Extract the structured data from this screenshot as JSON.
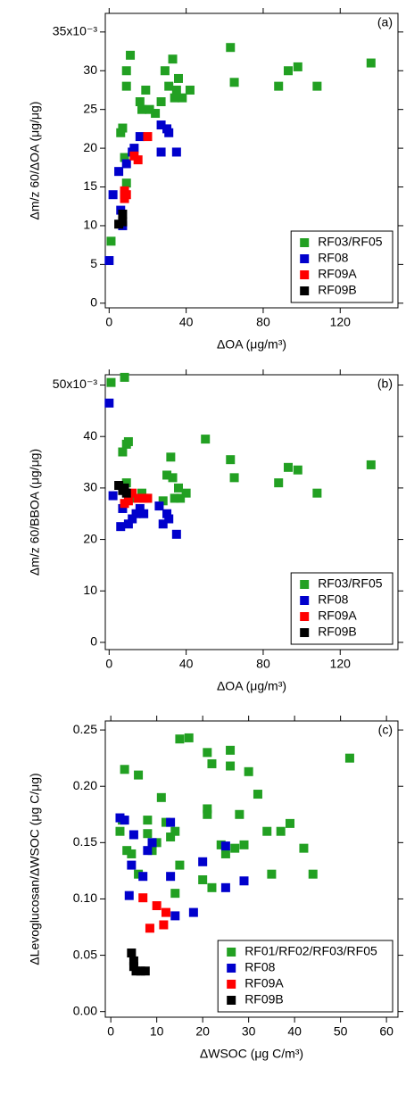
{
  "chart_data": [
    {
      "type": "scatter",
      "panel_label": "(a)",
      "xlabel": "ΔOA (μg/m³)",
      "ylabel": "Δm/z 60/ΔOA (μg/μg)",
      "xlim": [
        -2,
        150
      ],
      "ylim": [
        -0.0006,
        0.0374
      ],
      "xticks": [
        0,
        40,
        80,
        120
      ],
      "yticks": [
        {
          "value": 0,
          "label": "0"
        },
        {
          "value": 0.005,
          "label": "5"
        },
        {
          "value": 0.01,
          "label": "10"
        },
        {
          "value": 0.015,
          "label": "15"
        },
        {
          "value": 0.02,
          "label": "20"
        },
        {
          "value": 0.025,
          "label": "25"
        },
        {
          "value": 0.03,
          "label": "30"
        },
        {
          "value": 0.035,
          "label": "35x10⁻³"
        }
      ],
      "legend": "lower right",
      "series": [
        {
          "name": "RF03/RF05",
          "color": "#22a022",
          "x": [
            1,
            6,
            7,
            9,
            9,
            11,
            8,
            9,
            16,
            17,
            19,
            21,
            24,
            27,
            29,
            31,
            33,
            34,
            35,
            36,
            38,
            42,
            63,
            65,
            88,
            93,
            98,
            108,
            136
          ],
          "values": [
            0.008,
            0.022,
            0.0226,
            0.03,
            0.028,
            0.032,
            0.0188,
            0.0155,
            0.026,
            0.025,
            0.0275,
            0.025,
            0.0245,
            0.026,
            0.03,
            0.028,
            0.0315,
            0.0265,
            0.0275,
            0.029,
            0.0265,
            0.0275,
            0.033,
            0.0285,
            0.028,
            0.03,
            0.0305,
            0.028,
            0.031
          ]
        },
        {
          "name": "RF08",
          "color": "#0000cc",
          "x": [
            0,
            2,
            5,
            6,
            8,
            12,
            13,
            16,
            27,
            27,
            30,
            31,
            35,
            7,
            9
          ],
          "values": [
            0.0055,
            0.014,
            0.017,
            0.012,
            0.014,
            0.0195,
            0.02,
            0.0215,
            0.0195,
            0.023,
            0.0225,
            0.022,
            0.0195,
            0.01,
            0.018
          ]
        },
        {
          "name": "RF09A",
          "color": "#ff0000",
          "x": [
            8,
            8,
            9,
            13,
            15,
            20
          ],
          "values": [
            0.0135,
            0.0145,
            0.014,
            0.019,
            0.0185,
            0.0215
          ]
        },
        {
          "name": "RF09B",
          "color": "#000000",
          "x": [
            5,
            7,
            7
          ],
          "values": [
            0.0102,
            0.0105,
            0.0115
          ]
        }
      ]
    },
    {
      "type": "scatter",
      "panel_label": "(b)",
      "xlabel": "ΔOA (μg/m³)",
      "ylabel": "Δm/z 60/BBOA (μg/μg)",
      "xlim": [
        -2,
        150
      ],
      "ylim": [
        -0.0014,
        0.052
      ],
      "xticks": [
        0,
        40,
        80,
        120
      ],
      "yticks": [
        {
          "value": 0,
          "label": "0"
        },
        {
          "value": 0.01,
          "label": "10"
        },
        {
          "value": 0.02,
          "label": "20"
        },
        {
          "value": 0.03,
          "label": "30"
        },
        {
          "value": 0.04,
          "label": "40"
        },
        {
          "value": 0.05,
          "label": "50x10⁻³"
        }
      ],
      "legend": "lower right",
      "series": [
        {
          "name": "RF03/RF05",
          "color": "#22a022",
          "x": [
            1,
            8,
            7,
            9,
            10,
            9,
            12,
            17,
            20,
            28,
            30,
            32,
            33,
            34,
            36,
            37,
            40,
            50,
            63,
            65,
            88,
            93,
            98,
            108,
            136
          ],
          "values": [
            0.0505,
            0.0515,
            0.037,
            0.0385,
            0.039,
            0.031,
            0.028,
            0.029,
            0.028,
            0.0275,
            0.0325,
            0.036,
            0.032,
            0.028,
            0.03,
            0.028,
            0.029,
            0.0395,
            0.0355,
            0.032,
            0.031,
            0.034,
            0.0335,
            0.029,
            0.0345
          ]
        },
        {
          "name": "RF08",
          "color": "#0000cc",
          "x": [
            0,
            2,
            6,
            7,
            10,
            12,
            14,
            16,
            18,
            26,
            28,
            30,
            31,
            35
          ],
          "values": [
            0.0465,
            0.0285,
            0.0225,
            0.026,
            0.023,
            0.024,
            0.025,
            0.026,
            0.025,
            0.0265,
            0.023,
            0.025,
            0.024,
            0.021
          ]
        },
        {
          "name": "RF09A",
          "color": "#ff0000",
          "x": [
            8,
            10,
            12,
            15,
            18,
            20
          ],
          "values": [
            0.027,
            0.0275,
            0.029,
            0.028,
            0.028,
            0.028
          ]
        },
        {
          "name": "RF09B",
          "color": "#000000",
          "x": [
            5,
            7,
            9,
            8
          ],
          "values": [
            0.0305,
            0.0295,
            0.029,
            0.03
          ]
        }
      ]
    },
    {
      "type": "scatter",
      "panel_label": "(c)",
      "xlabel": "ΔWSOC (μg C/m³)",
      "ylabel": "ΔLevoglucosan/ΔWSOC (μg C/μg)",
      "xlim": [
        -1.2,
        62.5
      ],
      "ylim": [
        -0.005,
        0.258
      ],
      "xticks": [
        0,
        10,
        20,
        30,
        40,
        50,
        60
      ],
      "yticks": [
        {
          "value": 0,
          "label": "0.00"
        },
        {
          "value": 0.05,
          "label": "0.05"
        },
        {
          "value": 0.1,
          "label": "0.10"
        },
        {
          "value": 0.15,
          "label": "0.15"
        },
        {
          "value": 0.2,
          "label": "0.20"
        },
        {
          "value": 0.25,
          "label": "0.25"
        }
      ],
      "legend": "lower right",
      "series": [
        {
          "name": "RF01/RF02/RF03/RF05",
          "color": "#22a022",
          "x": [
            2,
            2.5,
            3,
            3.5,
            4.5,
            6,
            6,
            8,
            8,
            9,
            10,
            11,
            12,
            13,
            14,
            14,
            15,
            15,
            17,
            20,
            21,
            21,
            21,
            22,
            22,
            24,
            25,
            26,
            26,
            27,
            28,
            29,
            30,
            32,
            34,
            35,
            37,
            39,
            42,
            44,
            52
          ],
          "values": [
            0.16,
            0.17,
            0.215,
            0.143,
            0.14,
            0.21,
            0.122,
            0.17,
            0.158,
            0.143,
            0.15,
            0.19,
            0.168,
            0.155,
            0.105,
            0.16,
            0.13,
            0.242,
            0.243,
            0.117,
            0.175,
            0.18,
            0.23,
            0.11,
            0.22,
            0.148,
            0.14,
            0.232,
            0.218,
            0.145,
            0.175,
            0.148,
            0.213,
            0.193,
            0.16,
            0.122,
            0.16,
            0.167,
            0.145,
            0.122,
            0.225
          ]
        },
        {
          "name": "RF08",
          "color": "#0000cc",
          "x": [
            2,
            3,
            4,
            4.5,
            5,
            7,
            8,
            9,
            13,
            13,
            14,
            18,
            20,
            25,
            25,
            29
          ],
          "values": [
            0.172,
            0.17,
            0.103,
            0.13,
            0.157,
            0.12,
            0.143,
            0.15,
            0.168,
            0.12,
            0.085,
            0.088,
            0.133,
            0.147,
            0.11,
            0.116
          ]
        },
        {
          "name": "RF09A",
          "color": "#ff0000",
          "x": [
            7,
            8.5,
            10,
            11.5,
            12
          ],
          "values": [
            0.101,
            0.074,
            0.094,
            0.077,
            0.088
          ]
        },
        {
          "name": "RF09B",
          "color": "#000000",
          "x": [
            4.5,
            5,
            5,
            5.5,
            6.5,
            7.5
          ],
          "values": [
            0.052,
            0.045,
            0.04,
            0.036,
            0.036,
            0.036
          ]
        }
      ]
    }
  ]
}
